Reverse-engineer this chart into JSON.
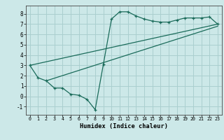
{
  "xlabel": "Humidex (Indice chaleur)",
  "bg_color": "#cce8e8",
  "grid_color": "#aacfcf",
  "line_color": "#1a6b5a",
  "line1_x": [
    0,
    1,
    2,
    3,
    4,
    5,
    6,
    7,
    8,
    9,
    10,
    11,
    12,
    13,
    14,
    15,
    16,
    17,
    18,
    19,
    20,
    21,
    22,
    23
  ],
  "line1_y": [
    3.0,
    1.8,
    1.5,
    0.8,
    0.8,
    0.2,
    0.1,
    -0.3,
    -1.3,
    3.1,
    7.5,
    8.2,
    8.2,
    7.8,
    7.5,
    7.3,
    7.2,
    7.2,
    7.4,
    7.6,
    7.6,
    7.6,
    7.7,
    7.0
  ],
  "line2_x": [
    0,
    23
  ],
  "line2_y": [
    3.0,
    7.0
  ],
  "line3_x": [
    2,
    23
  ],
  "line3_y": [
    1.5,
    6.8
  ],
  "ylim": [
    -1.8,
    8.8
  ],
  "xlim": [
    -0.5,
    23.5
  ],
  "yticks": [
    -1,
    0,
    1,
    2,
    3,
    4,
    5,
    6,
    7,
    8
  ],
  "xticks": [
    0,
    1,
    2,
    3,
    4,
    5,
    6,
    7,
    8,
    9,
    10,
    11,
    12,
    13,
    14,
    15,
    16,
    17,
    18,
    19,
    20,
    21,
    22,
    23
  ]
}
